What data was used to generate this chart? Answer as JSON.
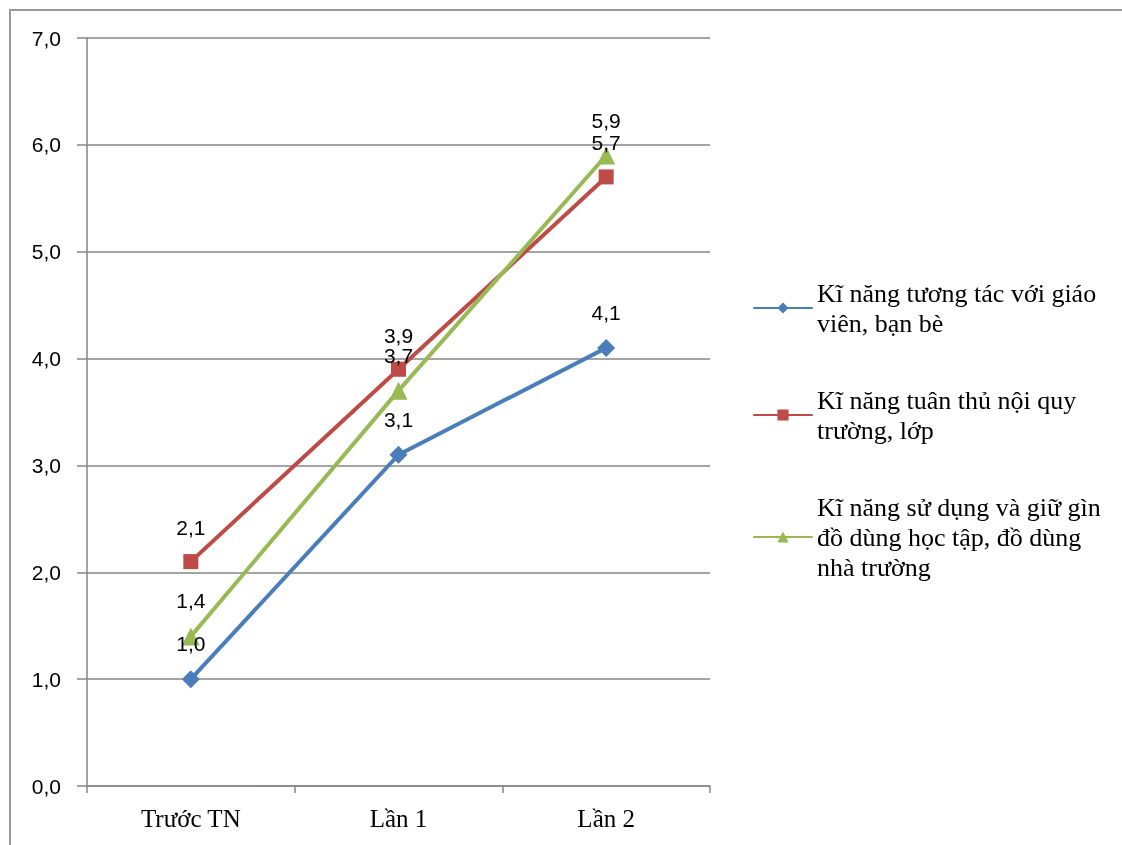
{
  "chart_data": {
    "type": "line",
    "categories": [
      "Trước TN",
      "Lần 1",
      "Lần 2"
    ],
    "series": [
      {
        "name": "Kĩ năng tương tác với giáo viên, bạn bè",
        "color": "#4a7ebb",
        "marker": "diamond",
        "values": [
          1.0,
          3.1,
          4.1
        ],
        "value_labels": [
          "1,0",
          "3,1",
          "4,1"
        ]
      },
      {
        "name": "Kĩ năng tuân thủ nội quy trường, lớp",
        "color": "#be4b48",
        "marker": "square",
        "values": [
          2.1,
          3.9,
          5.7
        ],
        "value_labels": [
          "2,1",
          "3,9",
          "5,7"
        ]
      },
      {
        "name": "Kĩ năng sử dụng và giữ gìn đồ dùng học tập, đồ dùng nhà trường",
        "color": "#98b954",
        "marker": "triangle",
        "values": [
          1.4,
          3.7,
          5.9
        ],
        "value_labels": [
          "1,4",
          "3,7",
          "5,9"
        ]
      }
    ],
    "ylim": [
      0,
      7
    ],
    "yticks": [
      {
        "value": 0,
        "label": "0,0"
      },
      {
        "value": 1,
        "label": "1,0"
      },
      {
        "value": 2,
        "label": "2,0"
      },
      {
        "value": 3,
        "label": "3,0"
      },
      {
        "value": 4,
        "label": "4,0"
      },
      {
        "value": 5,
        "label": "5,0"
      },
      {
        "value": 6,
        "label": "6,0"
      },
      {
        "value": 7,
        "label": "7,0"
      }
    ],
    "grid": "y",
    "legend": "right",
    "line_style": "solid"
  }
}
